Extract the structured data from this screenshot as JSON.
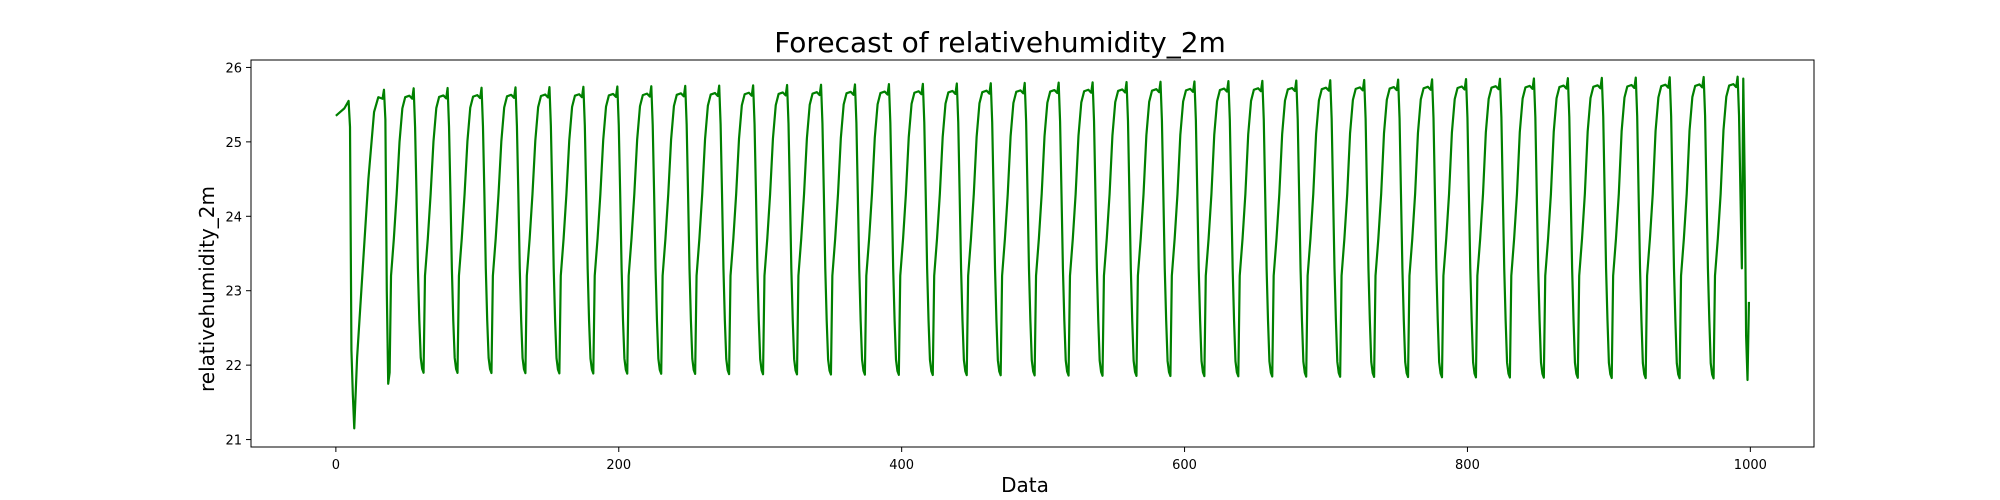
{
  "chart_data": {
    "type": "line",
    "title": "Forecast of relativehumidity_2m",
    "xlabel": "Data",
    "ylabel": "relativehumidity_2m",
    "xlim": [
      -60,
      1045
    ],
    "ylim": [
      20.9,
      26.1
    ],
    "xticks": [
      0,
      200,
      400,
      600,
      800,
      1000
    ],
    "yticks": [
      21,
      22,
      23,
      24,
      25,
      26
    ],
    "grid": false,
    "legend": "none",
    "line_color": "#008000",
    "series": [
      {
        "cycle_period": 24,
        "cycles": 42,
        "x_end": 999,
        "start": [
          [
            0,
            25.35
          ],
          [
            3,
            25.4
          ],
          [
            6,
            25.45
          ],
          [
            9,
            25.55
          ],
          [
            10,
            25.2
          ],
          [
            11,
            22.2
          ],
          [
            12,
            21.6
          ],
          [
            13,
            21.15
          ],
          [
            15,
            22.1
          ],
          [
            19,
            23.3
          ],
          [
            23,
            24.5
          ],
          [
            27,
            25.4
          ],
          [
            30,
            25.6
          ],
          [
            33,
            25.58
          ],
          [
            34,
            25.7
          ],
          [
            35,
            25.3
          ],
          [
            36,
            23.0
          ],
          [
            37,
            21.75
          ]
        ],
        "cycle_shape": [
          [
            0,
            21.9
          ],
          [
            1,
            23.2
          ],
          [
            3,
            23.7
          ],
          [
            5,
            24.3
          ],
          [
            7,
            25.0
          ],
          [
            9,
            25.45
          ],
          [
            11,
            25.6
          ],
          [
            14,
            25.62
          ],
          [
            16,
            25.58
          ],
          [
            17,
            25.72
          ],
          [
            18,
            25.2
          ],
          [
            19,
            24.3
          ],
          [
            20,
            23.3
          ],
          [
            21,
            22.6
          ],
          [
            22,
            22.1
          ],
          [
            23,
            21.95
          ]
        ],
        "peak_drift_per_cycle": 0.004,
        "trough_drift_per_cycle": -0.002,
        "end": [
          [
            995,
            25.85
          ],
          [
            996,
            24.5
          ],
          [
            997,
            22.4
          ],
          [
            998,
            21.8
          ],
          [
            999,
            22.85
          ]
        ]
      }
    ]
  }
}
